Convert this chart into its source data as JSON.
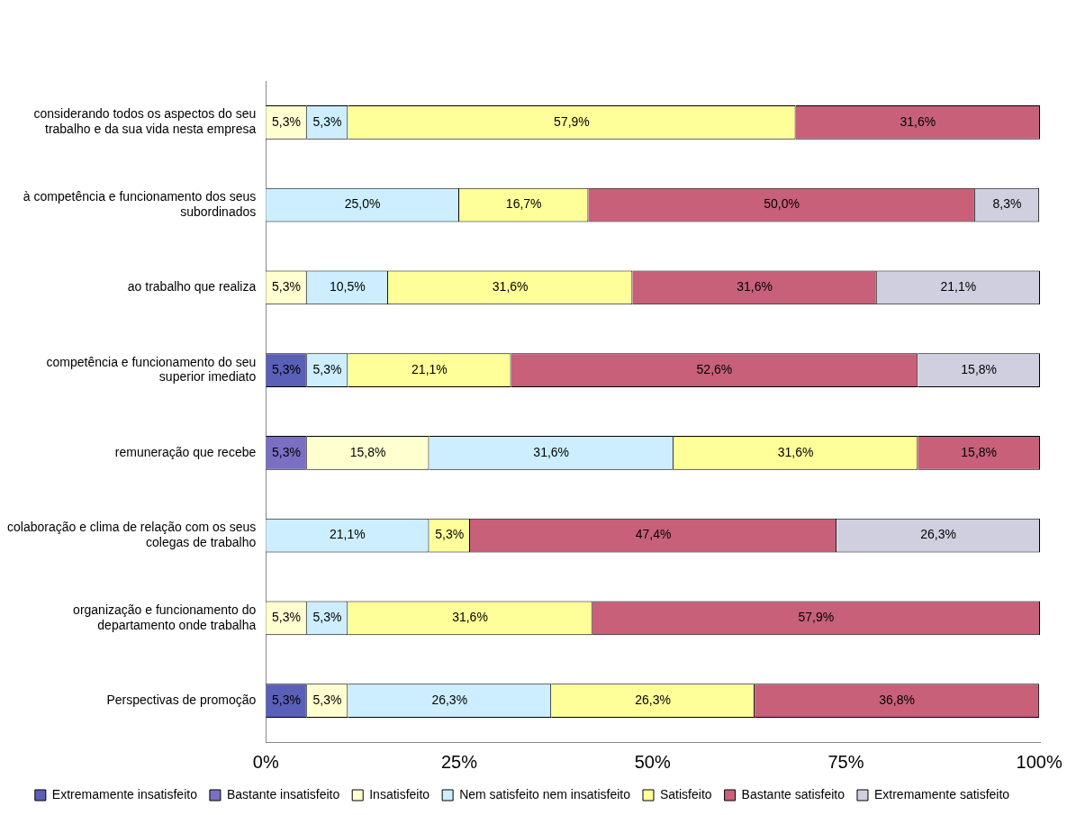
{
  "chart_data": {
    "type": "bar",
    "orientation": "horizontal",
    "stacked": true,
    "categories": [
      "considerando todos os aspectos do seu trabalho e da sua vida nesta empresa",
      "à competência e funcionamento dos seus subordinados",
      "ao trabalho que realiza",
      "competência e funcionamento do seu superior imediato",
      "remuneração que recebe",
      "colaboração e clima de relação com os seus colegas de trabalho",
      "organização e funcionamento do departamento onde trabalha",
      "Perspectivas de promoção"
    ],
    "series": [
      {
        "name": "Extremamente insatisfeito",
        "color": "#5a5fb8",
        "values": [
          null,
          null,
          null,
          5.3,
          null,
          null,
          null,
          5.3
        ],
        "value_labels": [
          null,
          null,
          null,
          "5,3%",
          null,
          null,
          null,
          "5,3%"
        ]
      },
      {
        "name": "Bastante insatisfeito",
        "color": "#7b6fc4",
        "values": [
          null,
          null,
          null,
          null,
          5.3,
          null,
          null,
          null
        ],
        "value_labels": [
          null,
          null,
          null,
          null,
          "5,3%",
          null,
          null,
          null
        ]
      },
      {
        "name": "Insatisfeito",
        "color": "#ffffd0",
        "values": [
          5.3,
          null,
          5.3,
          null,
          15.8,
          null,
          5.3,
          5.3
        ],
        "value_labels": [
          "5,3%",
          null,
          "5,3%",
          null,
          "15,8%",
          null,
          "5,3%",
          "5,3%"
        ]
      },
      {
        "name": "Nem satisfeito nem insatisfeito",
        "color": "#cceeff",
        "values": [
          5.3,
          25.0,
          10.5,
          5.3,
          31.6,
          21.1,
          5.3,
          26.3
        ],
        "value_labels": [
          "5,3%",
          "25,0%",
          "10,5%",
          "5,3%",
          "31,6%",
          "21,1%",
          "5,3%",
          "26,3%"
        ]
      },
      {
        "name": "Satisfeito",
        "color": "#ffff99",
        "values": [
          57.9,
          16.7,
          31.6,
          21.1,
          31.6,
          5.3,
          31.6,
          26.3
        ],
        "value_labels": [
          "57,9%",
          "16,7%",
          "31,6%",
          "21,1%",
          "31,6%",
          "5,3%",
          "31,6%",
          "26,3%"
        ]
      },
      {
        "name": "Bastante satisfeito",
        "color": "#c8607a",
        "values": [
          31.6,
          50.0,
          31.6,
          52.6,
          15.8,
          47.4,
          57.9,
          36.8
        ],
        "value_labels": [
          "31,6%",
          "50,0%",
          "31,6%",
          "52,6%",
          "15,8%",
          "47,4%",
          "57,9%",
          "36,8%"
        ]
      },
      {
        "name": "Extremamente satisfeito",
        "color": "#cfcfe0",
        "values": [
          null,
          8.3,
          21.1,
          15.8,
          null,
          26.3,
          null,
          null
        ],
        "value_labels": [
          null,
          "8,3%",
          "21,1%",
          "15,8%",
          null,
          "26,3%",
          null,
          null
        ]
      }
    ],
    "xlim": [
      0,
      100.1
    ],
    "xticks": [
      {
        "value": 0,
        "label": "0%"
      },
      {
        "value": 25,
        "label": "25%"
      },
      {
        "value": 50,
        "label": "50%"
      },
      {
        "value": 75,
        "label": "75%"
      },
      {
        "value": 100,
        "label": "100%"
      }
    ],
    "grid": false,
    "legend": "bottom"
  }
}
